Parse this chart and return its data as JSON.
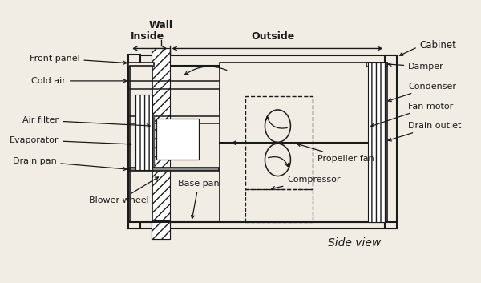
{
  "bg_color": "#f2ede4",
  "line_color": "#1a1a1a",
  "labels_left": {
    "Front panel": [
      0.145,
      0.785,
      0.245,
      0.77
    ],
    "Cold air": [
      0.11,
      0.715,
      0.245,
      0.715
    ],
    "Air filter": [
      0.095,
      0.575,
      0.26,
      0.555
    ],
    "Evaporator": [
      0.095,
      0.505,
      0.235,
      0.49
    ],
    "Drain pan": [
      0.09,
      0.43,
      0.245,
      0.405
    ]
  },
  "labels_right": {
    "Cabinet": [
      0.865,
      0.825,
      0.825,
      0.805
    ],
    "Damper": [
      0.835,
      0.755,
      0.79,
      0.74
    ],
    "Condenser": [
      0.835,
      0.695,
      0.79,
      0.67
    ],
    "Fan motor": [
      0.835,
      0.635,
      0.775,
      0.58
    ],
    "Drain outlet": [
      0.835,
      0.565,
      0.795,
      0.515
    ]
  },
  "labels_bottom": {
    "Propeller fan": [
      0.645,
      0.435,
      0.615,
      0.49
    ],
    "Compressor": [
      0.575,
      0.375,
      0.535,
      0.41
    ],
    "Base pan": [
      0.405,
      0.365,
      0.38,
      0.39
    ],
    "Blower wheel": [
      0.235,
      0.3,
      0.305,
      0.37
    ]
  }
}
